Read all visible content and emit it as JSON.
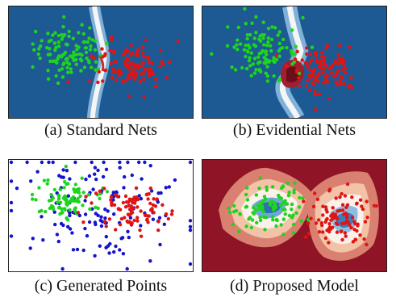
{
  "figure": {
    "panels": [
      {
        "key": "a",
        "caption": "(a) Standard Nets",
        "background": "#1d5a94"
      },
      {
        "key": "b",
        "caption": "(b) Evidential Nets",
        "background": "#1d5a94"
      },
      {
        "key": "c",
        "caption": "(c) Generated Points",
        "background": "#ffffff"
      },
      {
        "key": "d",
        "caption": "(d) Proposed Model",
        "background": "#8e1426"
      }
    ],
    "colors": {
      "class_green": "#1ed41e",
      "class_red": "#e01414",
      "generated_blue": "#1414c8",
      "dark_blue": "#1d5a94",
      "dark_red": "#8e1426"
    }
  }
}
